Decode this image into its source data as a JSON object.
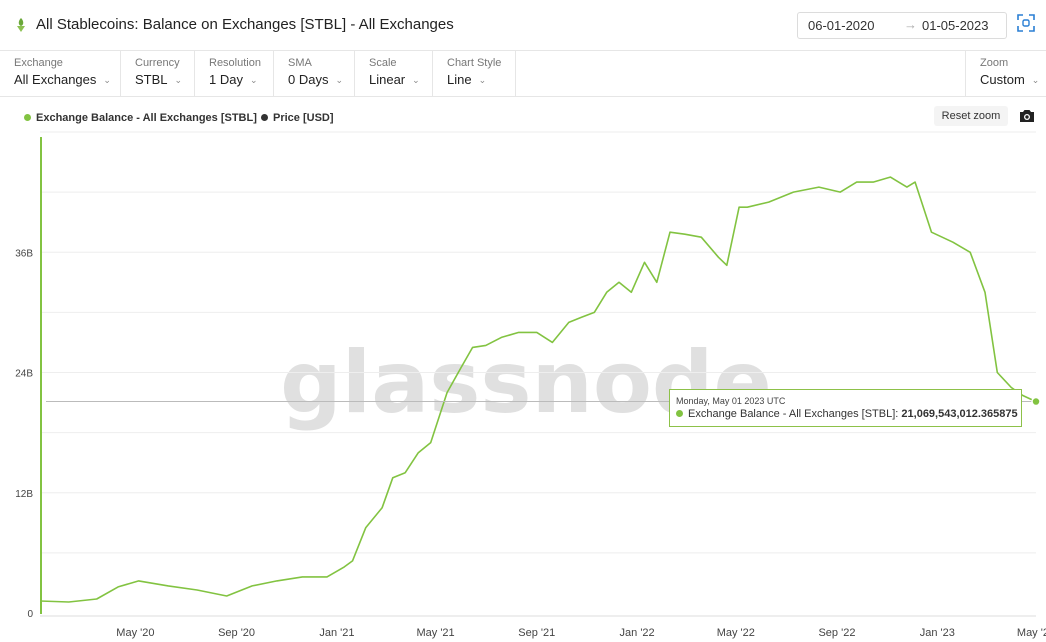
{
  "header": {
    "title": "All Stablecoins: Balance on Exchanges [STBL] - All Exchanges",
    "date_from": "06-01-2020",
    "date_arrow": "→",
    "date_to": "01-05-2023"
  },
  "controls": [
    {
      "label": "Exchange",
      "value": "All Exchanges"
    },
    {
      "label": "Currency",
      "value": "STBL"
    },
    {
      "label": "Resolution",
      "value": "1 Day"
    },
    {
      "label": "SMA",
      "value": "0 Days"
    },
    {
      "label": "Scale",
      "value": "Linear"
    },
    {
      "label": "Chart Style",
      "value": "Line"
    }
  ],
  "zoom": {
    "label": "Zoom",
    "value": "Custom"
  },
  "reset_zoom": "Reset zoom",
  "colors": {
    "series": "#82c341",
    "price": "#333333",
    "grid": "#eeeeee"
  },
  "tooltip": {
    "date": "Monday, May 01 2023 UTC",
    "series": "Exchange Balance - All Exchanges [STBL]:",
    "value": "21,069,543,012.365875"
  },
  "watermark": "glassnode",
  "chart_data": {
    "type": "line",
    "xlim": [
      "2020-01-06",
      "2023-05-01"
    ],
    "ylim": [
      0,
      48
    ],
    "ylabel_unit": "B",
    "yticks": [
      {
        "v": 0,
        "label": "0"
      },
      {
        "v": 12,
        "label": "12B"
      },
      {
        "v": 24,
        "label": "24B"
      },
      {
        "v": 36,
        "label": "36B"
      }
    ],
    "xticks": [
      {
        "date": "2020-05-01",
        "label": "May '20"
      },
      {
        "date": "2020-09-01",
        "label": "Sep '20"
      },
      {
        "date": "2021-01-01",
        "label": "Jan '21"
      },
      {
        "date": "2021-05-01",
        "label": "May '21"
      },
      {
        "date": "2021-09-01",
        "label": "Sep '21"
      },
      {
        "date": "2022-01-01",
        "label": "Jan '22"
      },
      {
        "date": "2022-05-01",
        "label": "May '22"
      },
      {
        "date": "2022-09-01",
        "label": "Sep '22"
      },
      {
        "date": "2023-01-01",
        "label": "Jan '23"
      },
      {
        "date": "2023-05-01",
        "label": "May '23"
      }
    ],
    "grid": true,
    "legend_position": "top-left",
    "series": [
      {
        "name": "Exchange Balance - All Exchanges [STBL]",
        "color": "#82c341",
        "x": [
          "2020-01-06",
          "2020-02-10",
          "2020-03-15",
          "2020-04-10",
          "2020-05-05",
          "2020-06-10",
          "2020-07-15",
          "2020-08-20",
          "2020-09-20",
          "2020-10-20",
          "2020-11-20",
          "2020-12-20",
          "2021-01-10",
          "2021-01-20",
          "2021-02-05",
          "2021-02-25",
          "2021-03-10",
          "2021-03-25",
          "2021-04-10",
          "2021-04-25",
          "2021-05-15",
          "2021-06-01",
          "2021-06-15",
          "2021-07-01",
          "2021-07-20",
          "2021-08-10",
          "2021-09-01",
          "2021-09-20",
          "2021-10-10",
          "2021-10-25",
          "2021-11-10",
          "2021-11-25",
          "2021-12-10",
          "2021-12-25",
          "2022-01-10",
          "2022-01-25",
          "2022-02-10",
          "2022-02-28",
          "2022-03-20",
          "2022-04-10",
          "2022-04-20",
          "2022-05-05",
          "2022-05-15",
          "2022-06-10",
          "2022-07-10",
          "2022-08-10",
          "2022-09-05",
          "2022-09-25",
          "2022-10-15",
          "2022-11-05",
          "2022-11-15",
          "2022-11-25",
          "2022-12-05",
          "2022-12-25",
          "2023-01-20",
          "2023-02-10",
          "2023-02-28",
          "2023-03-15",
          "2023-04-01",
          "2023-04-15",
          "2023-05-01"
        ],
        "y": [
          1.2,
          1.1,
          1.4,
          2.6,
          3.2,
          2.7,
          2.3,
          1.7,
          2.7,
          3.2,
          3.6,
          3.6,
          4.6,
          5.2,
          8.5,
          10.5,
          13.5,
          14,
          16,
          17,
          22,
          24.5,
          26.5,
          26.7,
          27.5,
          28,
          28,
          27,
          29,
          29.5,
          30,
          32,
          33,
          32,
          35,
          33,
          38,
          37.8,
          37.5,
          35.5,
          34.7,
          40.5,
          40.5,
          41,
          42,
          42.5,
          42,
          43,
          43,
          43.5,
          43,
          42.5,
          43,
          38,
          37,
          36,
          32,
          24,
          22.5,
          21.7,
          21.1
        ]
      }
    ]
  }
}
